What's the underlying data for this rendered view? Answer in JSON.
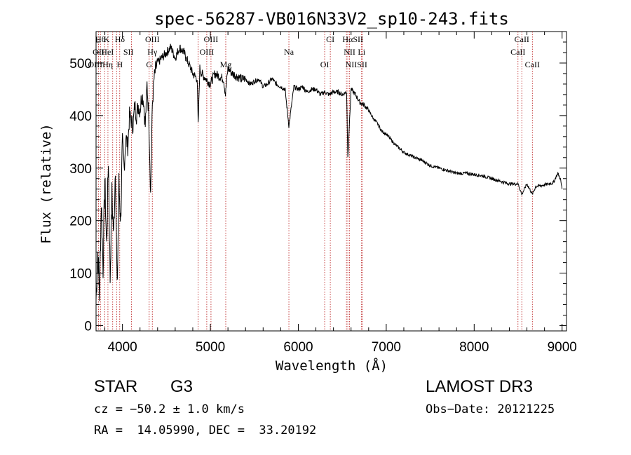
{
  "chart_data": {
    "type": "line",
    "title": "spec-56287-VB016N33V2_sp10-243.fits",
    "xlabel": "Wavelength (Å)",
    "ylabel": "Flux (relative)",
    "xlim": [
      3700,
      9050
    ],
    "ylim": [
      -10,
      560
    ],
    "x_ticks": [
      4000,
      5000,
      6000,
      7000,
      8000,
      9000
    ],
    "x_tick_labels": [
      "4000",
      "5000",
      "6000",
      "7000",
      "8000",
      "9000"
    ],
    "y_ticks": [
      0,
      100,
      200,
      300,
      400,
      500
    ],
    "y_tick_labels": [
      "0",
      "100",
      "200",
      "300",
      "400",
      "500"
    ],
    "series": [
      {
        "name": "flux",
        "x": [
          3700,
          3720,
          3740,
          3760,
          3780,
          3800,
          3820,
          3840,
          3860,
          3880,
          3900,
          3920,
          3940,
          3960,
          3980,
          4000,
          4020,
          4040,
          4060,
          4080,
          4100,
          4120,
          4140,
          4160,
          4180,
          4200,
          4220,
          4240,
          4260,
          4280,
          4300,
          4320,
          4340,
          4360,
          4380,
          4400,
          4450,
          4500,
          4550,
          4600,
          4650,
          4700,
          4750,
          4800,
          4850,
          4861,
          4880,
          4900,
          4950,
          5000,
          5050,
          5100,
          5150,
          5172,
          5200,
          5250,
          5300,
          5350,
          5400,
          5450,
          5500,
          5550,
          5600,
          5650,
          5700,
          5750,
          5800,
          5850,
          5893,
          5950,
          6000,
          6050,
          6100,
          6150,
          6200,
          6250,
          6300,
          6350,
          6400,
          6450,
          6500,
          6550,
          6563,
          6600,
          6650,
          6700,
          6750,
          6800,
          6850,
          6900,
          6950,
          7000,
          7100,
          7200,
          7300,
          7400,
          7500,
          7600,
          7700,
          7800,
          7900,
          8000,
          8100,
          8200,
          8300,
          8400,
          8500,
          8542,
          8600,
          8662,
          8700,
          8800,
          8900,
          8950,
          8980,
          9000
        ],
        "y": [
          50,
          140,
          60,
          240,
          110,
          280,
          150,
          320,
          90,
          250,
          170,
          310,
          60,
          270,
          200,
          350,
          300,
          360,
          340,
          400,
          390,
          380,
          420,
          400,
          420,
          410,
          440,
          430,
          380,
          460,
          400,
          250,
          420,
          470,
          490,
          500,
          510,
          520,
          530,
          510,
          530,
          520,
          500,
          480,
          470,
          380,
          490,
          480,
          470,
          460,
          480,
          475,
          470,
          440,
          490,
          480,
          475,
          470,
          470,
          460,
          465,
          470,
          455,
          460,
          470,
          460,
          455,
          450,
          380,
          455,
          450,
          455,
          445,
          450,
          450,
          440,
          445,
          440,
          445,
          445,
          440,
          445,
          320,
          450,
          440,
          425,
          420,
          410,
          395,
          385,
          370,
          365,
          345,
          330,
          322,
          315,
          305,
          300,
          295,
          290,
          290,
          288,
          285,
          280,
          275,
          270,
          270,
          250,
          270,
          250,
          265,
          268,
          272,
          290,
          280,
          260
        ]
      }
    ],
    "line_ids": [
      {
        "w": 3750,
        "label": "Hθ",
        "row": 0
      },
      {
        "w": 3820,
        "label": "K",
        "row": 0
      },
      {
        "w": 3970,
        "label": "Hδ",
        "row": 0
      },
      {
        "w": 4340,
        "label": "OIII",
        "row": 0
      },
      {
        "w": 5007,
        "label": "OIII",
        "row": 0
      },
      {
        "w": 6364,
        "label": "CI",
        "row": 0
      },
      {
        "w": 6620,
        "label": "HαSII",
        "row": 0
      },
      {
        "w": 8542,
        "label": "CaII",
        "row": 0
      },
      {
        "w": 3728,
        "label": "OII",
        "row": 1
      },
      {
        "w": 3830,
        "label": "HeI",
        "row": 1
      },
      {
        "w": 4068,
        "label": "SII",
        "row": 1
      },
      {
        "w": 4340,
        "label": "Hγ",
        "row": 1
      },
      {
        "w": 4959,
        "label": "OIII",
        "row": 1
      },
      {
        "w": 6583,
        "label": "NII",
        "row": 1
      },
      {
        "w": 6720,
        "label": "Li",
        "row": 1
      },
      {
        "w": 8498,
        "label": "CaII",
        "row": 1
      },
      {
        "w": 5893,
        "label": "Na",
        "row": 1
      },
      {
        "w": 3750,
        "label": "OIIIHη",
        "row": 2
      },
      {
        "w": 3970,
        "label": "H",
        "row": 2
      },
      {
        "w": 4304,
        "label": "G",
        "row": 2
      },
      {
        "w": 5175,
        "label": "Mg",
        "row": 2
      },
      {
        "w": 6300,
        "label": "OI",
        "row": 2
      },
      {
        "w": 6660,
        "label": "NIISII",
        "row": 2
      },
      {
        "w": 8662,
        "label": "CaII",
        "row": 2
      }
    ],
    "line_marks": [
      3728,
      3750,
      3798,
      3835,
      3889,
      3934,
      3969,
      4102,
      4304,
      4340,
      4861,
      4959,
      5007,
      5175,
      5893,
      6300,
      6364,
      6548,
      6563,
      6583,
      6717,
      6731,
      8498,
      8542,
      8662
    ]
  },
  "info": {
    "class": "STAR",
    "subclass": "G3",
    "survey": "LAMOST DR3",
    "cz": "cz = −50.2 ± 1.0 km/s",
    "obsdate": "Obs−Date: 20121225",
    "radec": "RA =  14.05990, DEC =  33.20192"
  }
}
